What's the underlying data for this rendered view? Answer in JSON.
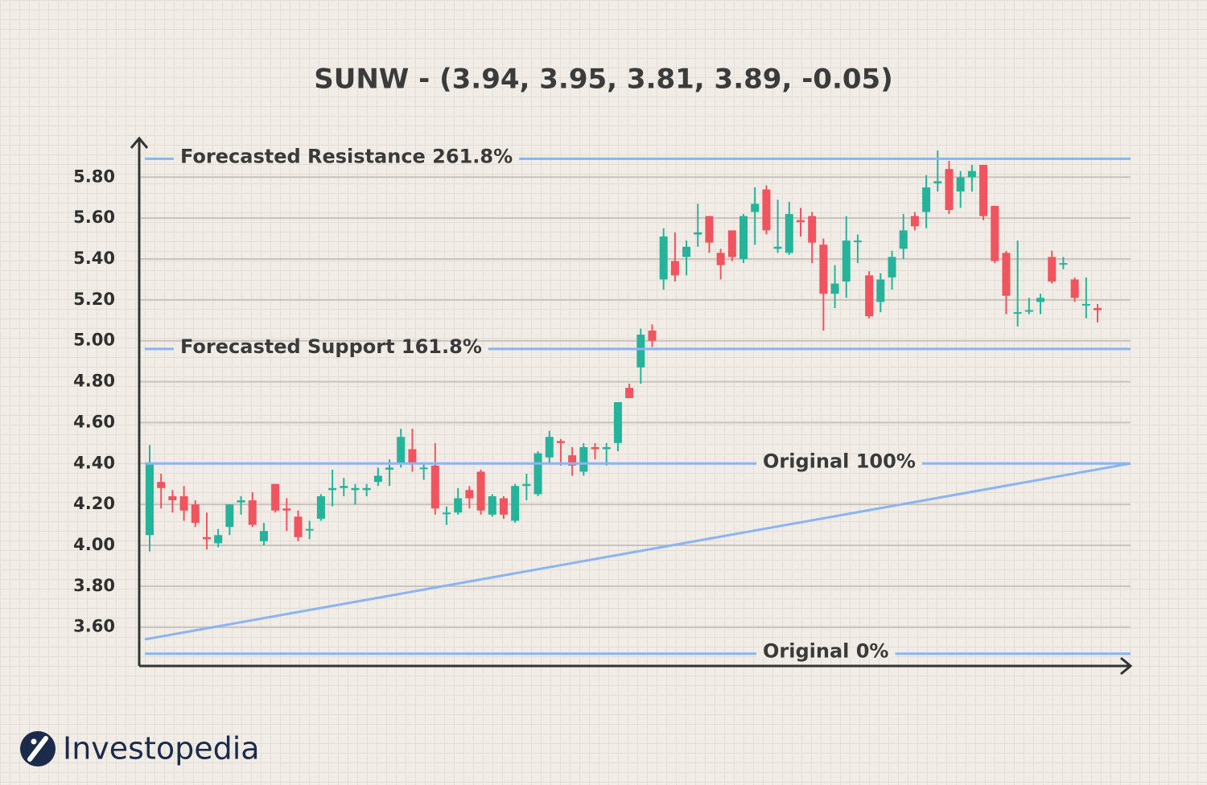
{
  "chart_data": {
    "type": "candlestick",
    "title": "SUNW - (3.94, 3.95, 3.81, 3.89, -0.05)",
    "brand": "Investopedia",
    "categories": [
      null,
      null,
      null,
      null,
      null,
      null,
      null,
      null,
      null,
      null,
      null,
      null,
      null,
      null,
      null,
      null,
      null,
      null,
      null,
      null,
      null,
      null,
      null,
      null,
      null,
      null,
      null,
      null,
      null,
      null,
      null,
      null,
      null,
      null,
      null,
      null,
      null,
      null,
      null,
      null,
      null,
      null,
      null,
      null,
      null,
      null,
      null,
      null,
      null,
      null,
      null,
      null,
      null,
      null,
      null,
      null,
      null,
      null,
      null,
      null,
      null,
      null,
      null,
      null,
      null,
      null,
      null,
      null,
      null,
      null,
      null,
      null,
      null,
      null,
      null,
      null,
      null,
      null,
      null,
      null,
      null,
      null,
      null,
      null
    ],
    "open": [
      4.05,
      4.31,
      4.24,
      4.24,
      4.2,
      4.04,
      4.01,
      4.09,
      4.21,
      4.22,
      4.02,
      4.3,
      4.18,
      4.14,
      4.08,
      4.13,
      4.27,
      4.28,
      4.27,
      4.27,
      4.31,
      4.37,
      4.4,
      4.47,
      4.38,
      4.39,
      4.16,
      4.16,
      4.27,
      4.36,
      4.15,
      4.23,
      4.12,
      4.29,
      4.25,
      4.43,
      4.51,
      4.44,
      4.36,
      4.48,
      4.47,
      4.5,
      4.77,
      4.87,
      5.05,
      5.3,
      5.39,
      5.41,
      5.52,
      5.61,
      5.43,
      5.54,
      5.4,
      5.63,
      5.74,
      5.45,
      5.43,
      5.59,
      5.61,
      5.47,
      5.23,
      5.29,
      5.49,
      5.32,
      5.19,
      5.31,
      5.45,
      5.61,
      5.63,
      5.77,
      5.84,
      5.73,
      5.8,
      5.86,
      5.66,
      5.43,
      5.14,
      5.15,
      5.19,
      5.41,
      5.38,
      5.3,
      5.18,
      5.16
    ],
    "high": [
      4.49,
      4.35,
      4.27,
      4.29,
      4.22,
      4.16,
      4.08,
      4.2,
      4.24,
      4.26,
      4.11,
      4.3,
      4.23,
      4.17,
      4.12,
      4.25,
      4.37,
      4.33,
      4.3,
      4.3,
      4.38,
      4.42,
      4.57,
      4.57,
      4.4,
      4.5,
      4.19,
      4.28,
      4.29,
      4.37,
      4.25,
      4.24,
      4.3,
      4.35,
      4.46,
      4.56,
      4.52,
      4.48,
      4.5,
      4.5,
      4.5,
      4.7,
      4.79,
      5.06,
      5.08,
      5.55,
      5.53,
      5.49,
      5.67,
      5.61,
      5.45,
      5.54,
      5.62,
      5.75,
      5.76,
      5.69,
      5.68,
      5.65,
      5.63,
      5.5,
      5.37,
      5.61,
      5.52,
      5.34,
      5.33,
      5.44,
      5.62,
      5.63,
      5.81,
      5.93,
      5.88,
      5.83,
      5.86,
      5.86,
      5.66,
      5.44,
      5.49,
      5.21,
      5.23,
      5.44,
      5.41,
      5.31,
      5.31,
      5.18
    ],
    "low": [
      3.97,
      4.18,
      4.16,
      4.12,
      4.09,
      3.98,
      3.99,
      4.05,
      4.15,
      4.09,
      4.0,
      4.16,
      4.07,
      4.02,
      4.03,
      4.12,
      4.19,
      4.24,
      4.2,
      4.24,
      4.29,
      4.29,
      4.38,
      4.36,
      4.32,
      4.15,
      4.1,
      4.15,
      4.18,
      4.15,
      4.14,
      4.13,
      4.11,
      4.22,
      4.24,
      4.4,
      4.39,
      4.34,
      4.34,
      4.42,
      4.39,
      4.46,
      4.72,
      4.79,
      4.97,
      5.25,
      5.29,
      5.32,
      5.46,
      5.43,
      5.3,
      5.39,
      5.38,
      5.47,
      5.52,
      5.43,
      5.42,
      5.51,
      5.38,
      5.05,
      5.16,
      5.21,
      5.38,
      5.11,
      5.14,
      5.25,
      5.4,
      5.54,
      5.55,
      5.73,
      5.62,
      5.65,
      5.73,
      5.59,
      5.38,
      5.13,
      5.07,
      5.13,
      5.13,
      5.28,
      5.35,
      5.19,
      5.11,
      5.09
    ],
    "close": [
      4.4,
      4.28,
      4.22,
      4.17,
      4.11,
      4.03,
      4.05,
      4.2,
      4.22,
      4.1,
      4.07,
      4.17,
      4.17,
      4.04,
      4.08,
      4.24,
      4.28,
      4.29,
      4.28,
      4.28,
      4.34,
      4.38,
      4.53,
      4.4,
      4.38,
      4.18,
      4.16,
      4.23,
      4.23,
      4.17,
      4.24,
      4.15,
      4.29,
      4.3,
      4.45,
      4.53,
      4.5,
      4.39,
      4.48,
      4.47,
      4.48,
      4.7,
      4.72,
      5.03,
      5.0,
      5.51,
      5.32,
      5.46,
      5.53,
      5.48,
      5.37,
      5.41,
      5.61,
      5.67,
      5.54,
      5.46,
      5.62,
      5.58,
      5.48,
      5.23,
      5.28,
      5.49,
      5.49,
      5.12,
      5.3,
      5.41,
      5.54,
      5.56,
      5.75,
      5.78,
      5.64,
      5.8,
      5.83,
      5.61,
      5.39,
      5.22,
      5.14,
      5.15,
      5.21,
      5.29,
      5.38,
      5.21,
      5.18,
      5.15
    ],
    "up_color": "#26b39b",
    "down_color": "#f2545f",
    "levels": [
      {
        "label": "Forecasted Resistance 261.8%",
        "value": 5.89
      },
      {
        "label": "Forecasted Support 161.8%",
        "value": 4.96
      },
      {
        "label": "Original 100%",
        "value": 4.4
      },
      {
        "label": "Original 0%",
        "value": 3.47
      }
    ],
    "level_color": "#8ab4f2",
    "trend_line": {
      "start": 3.54,
      "end": 4.4
    },
    "ylim": [
      3.41,
      5.99
    ],
    "yticks": [
      {
        "value": 3.6,
        "label": "3.60"
      },
      {
        "value": 3.8,
        "label": "3.80"
      },
      {
        "value": 4.0,
        "label": "4.00"
      },
      {
        "value": 4.2,
        "label": "4.20"
      },
      {
        "value": 4.4,
        "label": "4.40"
      },
      {
        "value": 4.6,
        "label": "4.60"
      },
      {
        "value": 4.8,
        "label": "4.80"
      },
      {
        "value": 5.0,
        "label": "5.00"
      },
      {
        "value": 5.2,
        "label": "5.20"
      },
      {
        "value": 5.4,
        "label": "5.40"
      },
      {
        "value": 5.6,
        "label": "5.60"
      },
      {
        "value": 5.8,
        "label": "5.80"
      }
    ],
    "grid": true
  }
}
